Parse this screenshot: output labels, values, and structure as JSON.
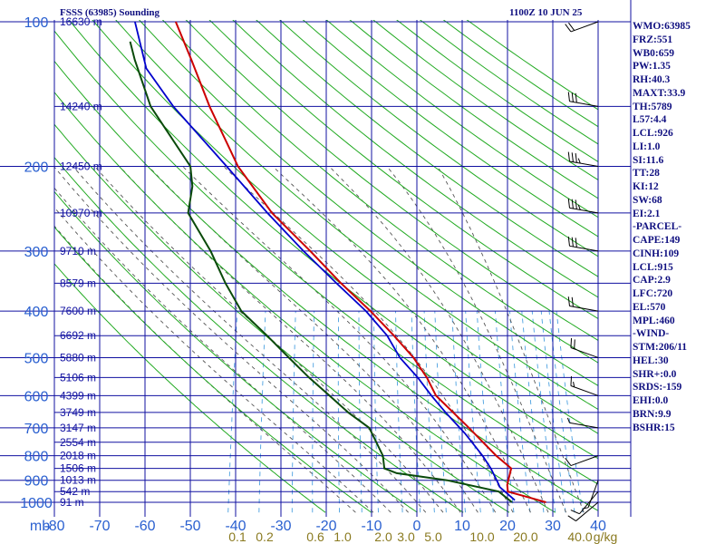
{
  "header": {
    "station_title": "FSSS (63985) Sounding",
    "valid_time": "1100Z 10 JUN 25"
  },
  "stats": [
    "WMO:63985",
    "FRZ:551",
    "WB0:659",
    "PW:1.35",
    "RH:40.3",
    "MAXT:33.9",
    "TH:5789",
    "L57:4.4",
    "LCL:926",
    "LI:1.0",
    "SI:11.6",
    "TT:28",
    "KI:12",
    "SW:68",
    "EI:2.1",
    "-PARCEL-",
    "CAPE:149",
    "CINH:109",
    "LCL:915",
    "CAP:2.9",
    "LFC:720",
    "EL:570",
    "MPL:460",
    "-WIND-",
    "STM:206/11",
    "HEL:30",
    "SHR+:0.0",
    "SRDS:-159",
    "EHI:0.0",
    "BRN:9.9",
    "BSHR:15"
  ],
  "colors": {
    "grid": "#1010a0",
    "dry_adiabats": "#22aa22",
    "moist_adiabats": "#555555",
    "mixing_ratio": "#4aa0e0",
    "temperature": "#cc0000",
    "dewpoint": "#0a4a0a",
    "parcel": "#0000cc",
    "wind": "#000000",
    "axis_text": "#2a60d0",
    "mixing_text": "#8a7a20"
  },
  "chart_data": {
    "type": "skew-t log-p sounding",
    "pressure_unit": "mb",
    "pressure_levels": [
      100,
      200,
      300,
      400,
      500,
      600,
      700,
      800,
      900,
      1000
    ],
    "temperature_ticks": [
      -80,
      -70,
      -60,
      -50,
      -40,
      -30,
      -20,
      -10,
      0,
      10,
      20,
      30,
      40
    ],
    "xlim": [
      -80,
      40
    ],
    "ylim": [
      1050,
      100
    ],
    "height_labels": [
      {
        "p": 100,
        "label": "16630 m"
      },
      {
        "p": 150,
        "label": "14240 m"
      },
      {
        "p": 200,
        "label": "12450 m"
      },
      {
        "p": 250,
        "label": "10970 m"
      },
      {
        "p": 300,
        "label": "9710 m"
      },
      {
        "p": 350,
        "label": "8579 m"
      },
      {
        "p": 400,
        "label": "7600 m"
      },
      {
        "p": 450,
        "label": "6692 m"
      },
      {
        "p": 500,
        "label": "5880 m"
      },
      {
        "p": 550,
        "label": "5106 m"
      },
      {
        "p": 600,
        "label": "4399 m"
      },
      {
        "p": 650,
        "label": "3749 m"
      },
      {
        "p": 700,
        "label": "3147 m"
      },
      {
        "p": 750,
        "label": "2554 m"
      },
      {
        "p": 800,
        "label": "2018 m"
      },
      {
        "p": 850,
        "label": "1506 m"
      },
      {
        "p": 900,
        "label": "1013 m"
      },
      {
        "p": 950,
        "label": "542 m"
      },
      {
        "p": 1000,
        "label": "91 m"
      }
    ],
    "mixing_ratio_labels": [
      {
        "w": 0.1,
        "label": "0.1"
      },
      {
        "w": 0.2,
        "label": "0.2"
      },
      {
        "w": 0.6,
        "label": "0.6"
      },
      {
        "w": 1.0,
        "label": "1.0"
      },
      {
        "w": 2.0,
        "label": "2.0"
      },
      {
        "w": 3.0,
        "label": "3.0"
      },
      {
        "w": 5.0,
        "label": "5.0"
      },
      {
        "w": 10.0,
        "label": "10.0"
      },
      {
        "w": 20.0,
        "label": "20.0"
      },
      {
        "w": 40.0,
        "label": "40.0"
      }
    ],
    "mixing_ratio_unit": "g/kg",
    "temperature": [
      {
        "p": 1000,
        "t": 28.5
      },
      {
        "p": 980,
        "t": 25.0
      },
      {
        "p": 950,
        "t": 19.5
      },
      {
        "p": 920,
        "t": 19.0
      },
      {
        "p": 900,
        "t": 19.0
      },
      {
        "p": 850,
        "t": 19.0
      },
      {
        "p": 800,
        "t": 15.0
      },
      {
        "p": 700,
        "t": 7.5
      },
      {
        "p": 600,
        "t": -1.5
      },
      {
        "p": 550,
        "t": -4.5
      },
      {
        "p": 500,
        "t": -8.5
      },
      {
        "p": 450,
        "t": -14.0
      },
      {
        "p": 400,
        "t": -20.5
      },
      {
        "p": 350,
        "t": -28.5
      },
      {
        "p": 300,
        "t": -37.0
      },
      {
        "p": 250,
        "t": -47.5
      },
      {
        "p": 200,
        "t": -57.5
      },
      {
        "p": 150,
        "t": -67.0
      },
      {
        "p": 120,
        "t": -73.5
      },
      {
        "p": 100,
        "t": -79.0
      }
    ],
    "dewpoint": [
      {
        "p": 1000,
        "t": 21.0
      },
      {
        "p": 950,
        "t": 17.5
      },
      {
        "p": 900,
        "t": 5.5
      },
      {
        "p": 870,
        "t": -6.0
      },
      {
        "p": 850,
        "t": -9.0
      },
      {
        "p": 800,
        "t": -10.0
      },
      {
        "p": 700,
        "t": -14.5
      },
      {
        "p": 650,
        "t": -20.0
      },
      {
        "p": 600,
        "t": -25.0
      },
      {
        "p": 550,
        "t": -30.5
      },
      {
        "p": 500,
        "t": -36.0
      },
      {
        "p": 450,
        "t": -42.0
      },
      {
        "p": 400,
        "t": -49.0
      },
      {
        "p": 350,
        "t": -54.0
      },
      {
        "p": 300,
        "t": -59.0
      },
      {
        "p": 250,
        "t": -66.0
      },
      {
        "p": 220,
        "t": -66.5
      },
      {
        "p": 200,
        "t": -68.0
      },
      {
        "p": 150,
        "t": -80.0
      },
      {
        "p": 120,
        "t": -86.0
      },
      {
        "p": 110,
        "t": -88.0
      }
    ],
    "parcel": [
      {
        "p": 990,
        "t": 21.5
      },
      {
        "p": 930,
        "t": 17.5
      },
      {
        "p": 915,
        "t": 17.0
      },
      {
        "p": 850,
        "t": 14.5
      },
      {
        "p": 800,
        "t": 12.0
      },
      {
        "p": 720,
        "t": 7.0
      },
      {
        "p": 650,
        "t": 1.5
      },
      {
        "p": 600,
        "t": -2.5
      },
      {
        "p": 550,
        "t": -6.5
      },
      {
        "p": 500,
        "t": -11.5
      },
      {
        "p": 450,
        "t": -15.5
      },
      {
        "p": 400,
        "t": -21.5
      },
      {
        "p": 350,
        "t": -29.5
      },
      {
        "p": 300,
        "t": -38.5
      },
      {
        "p": 250,
        "t": -48.5
      },
      {
        "p": 200,
        "t": -60.0
      },
      {
        "p": 150,
        "t": -75.0
      },
      {
        "p": 125,
        "t": -83.0
      },
      {
        "p": 100,
        "t": -88.0
      }
    ],
    "dry_adiabats_theta_K": [
      250,
      260,
      270,
      280,
      290,
      300,
      310,
      320,
      330,
      340,
      350,
      360,
      370,
      380,
      390,
      400,
      410,
      420,
      430,
      440,
      450,
      460,
      470,
      480,
      490,
      500
    ],
    "moist_adiabats_theta_w_C": [
      -16,
      -12,
      -8,
      -4,
      0,
      4,
      8,
      12,
      16,
      20,
      24,
      28,
      32,
      36
    ],
    "wind_barbs": [
      {
        "p": 1000,
        "dir": 230,
        "spd": 10
      },
      {
        "p": 950,
        "dir": 220,
        "spd": 10
      },
      {
        "p": 900,
        "dir": 200,
        "spd": 5
      },
      {
        "p": 800,
        "dir": 250,
        "spd": 10
      },
      {
        "p": 700,
        "dir": 280,
        "spd": 5
      },
      {
        "p": 600,
        "dir": 290,
        "spd": 15
      },
      {
        "p": 500,
        "dir": 290,
        "spd": 20
      },
      {
        "p": 400,
        "dir": 280,
        "spd": 20
      },
      {
        "p": 300,
        "dir": 280,
        "spd": 30
      },
      {
        "p": 250,
        "dir": 280,
        "spd": 35
      },
      {
        "p": 200,
        "dir": 280,
        "spd": 35
      },
      {
        "p": 150,
        "dir": 280,
        "spd": 30
      },
      {
        "p": 100,
        "dir": 250,
        "spd": 20
      }
    ],
    "grid": true
  }
}
